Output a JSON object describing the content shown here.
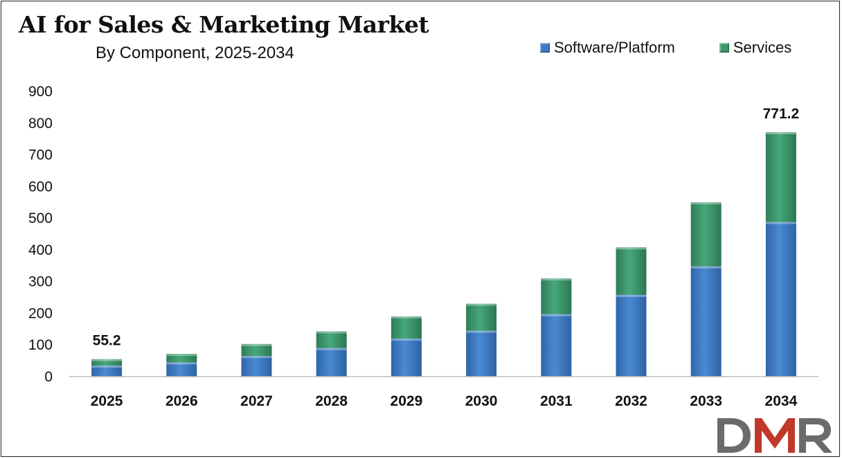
{
  "header": {
    "title": "AI for Sales & Marketing Market",
    "subtitle": "By Component,  2025-2034"
  },
  "legend": {
    "items": [
      {
        "label": "Software/Platform",
        "color": "#3e7cc4"
      },
      {
        "label": "Services",
        "color": "#3c9a6e"
      }
    ]
  },
  "logo": {
    "text": "DMR",
    "colors": [
      "#6b6b6b",
      "#c0392b"
    ]
  },
  "chart_data": {
    "type": "bar",
    "stacked": true,
    "categories": [
      "2025",
      "2026",
      "2027",
      "2028",
      "2029",
      "2030",
      "2031",
      "2032",
      "2033",
      "2034"
    ],
    "series": [
      {
        "name": "Software/Platform",
        "color": "#3e7cc4",
        "values": [
          35,
          45,
          65,
          90,
          120,
          145,
          197,
          258,
          348,
          488
        ]
      },
      {
        "name": "Services",
        "color": "#3c9a6e",
        "values": [
          20.2,
          27,
          38,
          53,
          70,
          85,
          113,
          150,
          202,
          283.2
        ]
      }
    ],
    "totals_labels": [
      {
        "category": "2025",
        "text": "55.2"
      },
      {
        "category": "2034",
        "text": "771.2"
      }
    ],
    "y_ticks": [
      "0",
      "100",
      "200",
      "300",
      "400",
      "500",
      "600",
      "700",
      "800",
      "900"
    ],
    "ylim": [
      0,
      900
    ],
    "xlabel": "",
    "ylabel": "",
    "grid": false,
    "legend_position": "top-right"
  }
}
